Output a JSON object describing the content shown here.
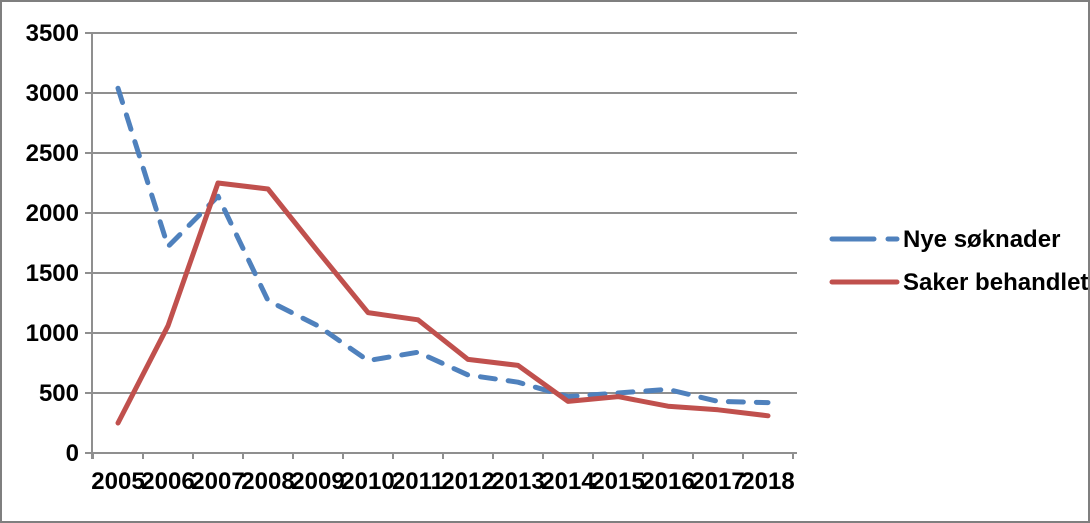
{
  "chart_data": {
    "type": "line",
    "title": "",
    "xlabel": "",
    "ylabel": "",
    "categories": [
      "2005",
      "2006",
      "2007",
      "2008",
      "2009",
      "2010",
      "2011",
      "2012",
      "2013",
      "2014",
      "2015",
      "2016",
      "2017",
      "2018"
    ],
    "series": [
      {
        "name": "Nye søknader",
        "color": "#4F81BD",
        "line_style": "dashed",
        "values": [
          3040,
          1720,
          2140,
          1270,
          1060,
          770,
          840,
          650,
          590,
          470,
          500,
          530,
          430,
          420
        ]
      },
      {
        "name": "Saker behandlet",
        "color": "#C0504D",
        "line_style": "solid",
        "values": [
          250,
          1060,
          2250,
          2200,
          1680,
          1170,
          1110,
          780,
          730,
          430,
          470,
          390,
          360,
          310
        ]
      }
    ],
    "ylim": [
      0,
      3500
    ],
    "y_tick_interval": 500,
    "y_tick_labels": [
      "0",
      "500",
      "1000",
      "1500",
      "2000",
      "2500",
      "3000",
      "3500"
    ],
    "grid": "horizontal",
    "legend_position": "right"
  },
  "colors": {
    "series_blue": "#4F81BD",
    "series_red": "#C0504D",
    "gridline": "#8f8f8f",
    "axis": "#8f8f8f",
    "label_text": "#000000",
    "background": "#FFFFFF",
    "frame_border": "#7F7F7F"
  }
}
